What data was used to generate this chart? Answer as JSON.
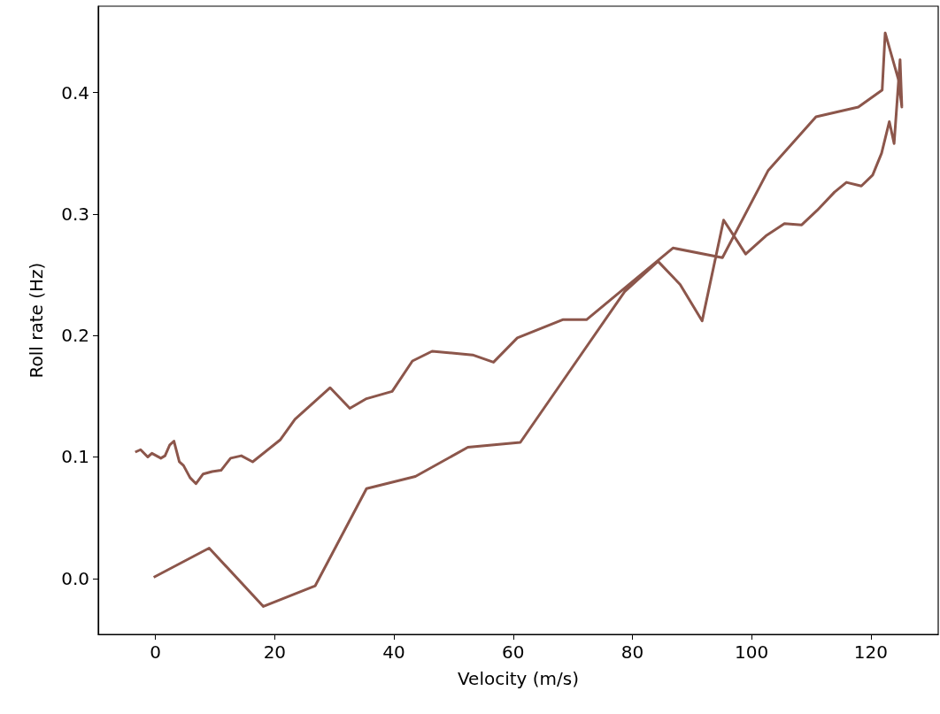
{
  "chart_data": {
    "type": "line",
    "xlabel": "Velocity (m/s)",
    "ylabel": "Roll rate (Hz)",
    "series": [
      {
        "color": "#8c564b",
        "x": [
          -0.3,
          9.0,
          18.1,
          26.8,
          35.4,
          43.6,
          52.4,
          61.2,
          69.8,
          78.7,
          84.3,
          88.0,
          91.7,
          95.3,
          99.0,
          102.4,
          105.5,
          108.4,
          111.0,
          113.9,
          115.9,
          118.4,
          120.3,
          121.8,
          123.1,
          123.9,
          124.9,
          125.2,
          124.6,
          122.4,
          121.9,
          117.9,
          110.8,
          102.8,
          95.1,
          86.8,
          72.3,
          68.3,
          60.7,
          56.7,
          53.2,
          46.4,
          43.1,
          39.7,
          35.4,
          32.6,
          29.3,
          23.4,
          20.9,
          16.3,
          14.4,
          12.6,
          11.0,
          9.5,
          8.0,
          6.8,
          5.8,
          4.7,
          4.0,
          3.1,
          2.4,
          1.6,
          0.9,
          -0.6,
          -1.3,
          -2.5,
          -3.4
        ],
        "values": [
          0.001,
          0.025,
          -0.023,
          -0.006,
          0.074,
          0.084,
          0.108,
          0.112,
          0.173,
          0.236,
          0.261,
          0.242,
          0.212,
          0.295,
          0.267,
          0.282,
          0.292,
          0.291,
          0.303,
          0.318,
          0.326,
          0.323,
          0.332,
          0.35,
          0.376,
          0.358,
          0.427,
          0.388,
          0.411,
          0.449,
          0.402,
          0.388,
          0.38,
          0.336,
          0.264,
          0.272,
          0.213,
          0.213,
          0.198,
          0.178,
          0.184,
          0.187,
          0.179,
          0.154,
          0.148,
          0.14,
          0.157,
          0.131,
          0.114,
          0.096,
          0.101,
          0.099,
          0.089,
          0.088,
          0.086,
          0.078,
          0.083,
          0.093,
          0.096,
          0.113,
          0.11,
          0.101,
          0.099,
          0.103,
          0.1,
          0.106,
          0.104
        ]
      }
    ],
    "xlim": [
      -9.6,
      131.3
    ],
    "xticks": [
      0,
      20,
      40,
      60,
      80,
      100,
      120
    ],
    "ylim": [
      -0.046,
      0.471
    ],
    "yticks": [
      {
        "value": 0,
        "label": "0.0"
      },
      {
        "value": 0.1,
        "label": "0.1"
      },
      {
        "value": 0.2,
        "label": "0.2"
      },
      {
        "value": 0.3,
        "label": "0.3"
      },
      {
        "value": 0.4,
        "label": "0.4"
      }
    ],
    "grid": false,
    "marker": "none",
    "line_style": "solid"
  }
}
